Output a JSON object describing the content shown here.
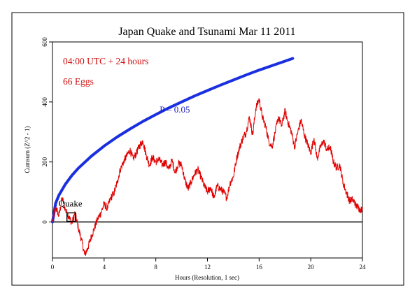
{
  "chart_data": {
    "type": "line",
    "title": "Japan Quake and Tsunami Mar 11 2011",
    "xlabel": "Hours (Resolution, 1 sec)",
    "ylabel": "Cumsum (Z^2 - 1)",
    "xlim": [
      0,
      24
    ],
    "ylim": [
      -120,
      600
    ],
    "x_ticks": [
      0,
      4,
      8,
      12,
      16,
      20,
      24
    ],
    "y_ticks": [
      0,
      200,
      400,
      600
    ],
    "grid": false,
    "annotations": {
      "time_window": "04:00 UTC + 24 hours",
      "eggs": "66 Eggs",
      "p_label": "P = 0.05",
      "event_label": "Quake"
    },
    "event_marker": {
      "x": 1.77,
      "y": 0
    },
    "colors": {
      "cumsum": "#e00000",
      "p_curve": "#1a2fe0",
      "text_red": "#d01010",
      "text_blue": "#2020c0"
    },
    "series": [
      {
        "name": "Cumsum",
        "x": [
          0,
          0.25,
          0.5,
          0.75,
          1.0,
          1.25,
          1.5,
          1.75,
          2.0,
          2.25,
          2.5,
          2.75,
          3.0,
          3.25,
          3.5,
          3.75,
          4.0,
          4.25,
          4.5,
          4.75,
          5.0,
          5.25,
          5.5,
          5.75,
          6.0,
          6.25,
          6.5,
          6.75,
          7.0,
          7.25,
          7.5,
          7.75,
          8.0,
          8.25,
          8.5,
          8.75,
          9.0,
          9.25,
          9.5,
          9.75,
          10.0,
          10.25,
          10.5,
          10.75,
          11.0,
          11.25,
          11.5,
          11.75,
          12.0,
          12.25,
          12.5,
          12.75,
          13.0,
          13.25,
          13.5,
          13.75,
          14.0,
          14.25,
          14.5,
          14.75,
          15.0,
          15.25,
          15.5,
          15.75,
          16.0,
          16.25,
          16.5,
          16.75,
          17.0,
          17.25,
          17.5,
          17.75,
          18.0,
          18.25,
          18.5,
          18.75,
          19.0,
          19.25,
          19.5,
          19.75,
          20.0,
          20.25,
          20.5,
          20.75,
          21.0,
          21.25,
          21.5,
          21.75,
          22.0,
          22.25,
          22.5,
          22.75,
          23.0,
          23.25,
          23.5,
          23.75,
          24.0
        ],
        "y": [
          0,
          50,
          20,
          80,
          40,
          20,
          -5,
          30,
          -20,
          -60,
          -110,
          -85,
          -50,
          -20,
          10,
          30,
          60,
          45,
          80,
          95,
          130,
          175,
          200,
          220,
          240,
          210,
          230,
          255,
          270,
          225,
          190,
          215,
          200,
          210,
          190,
          200,
          175,
          205,
          165,
          195,
          190,
          140,
          110,
          135,
          160,
          175,
          150,
          120,
          100,
          115,
          80,
          120,
          110,
          100,
          80,
          130,
          150,
          210,
          250,
          280,
          300,
          350,
          290,
          380,
          410,
          350,
          320,
          270,
          250,
          300,
          350,
          320,
          370,
          330,
          300,
          250,
          300,
          340,
          290,
          260,
          230,
          280,
          210,
          250,
          270,
          240,
          250,
          200,
          180,
          190,
          130,
          100,
          70,
          75,
          55,
          45,
          40
        ]
      },
      {
        "name": "P = 0.05",
        "x": [
          0,
          0.25,
          0.5,
          1,
          1.5,
          2,
          3,
          4,
          5,
          6,
          7,
          8,
          9,
          10,
          11,
          12,
          13,
          14,
          15,
          16,
          17,
          18,
          18.6
        ],
        "y": [
          0,
          63,
          89,
          126,
          155,
          179,
          219,
          253,
          283,
          310,
          335,
          358,
          380,
          400,
          420,
          438,
          456,
          473,
          490,
          506,
          521,
          536,
          545
        ]
      }
    ]
  }
}
